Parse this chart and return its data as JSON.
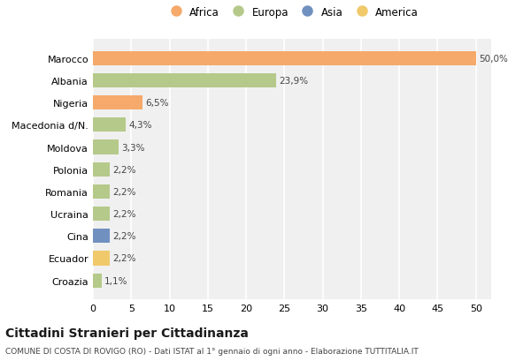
{
  "categories": [
    "Marocco",
    "Albania",
    "Nigeria",
    "Macedonia d/N.",
    "Moldova",
    "Polonia",
    "Romania",
    "Ucraina",
    "Cina",
    "Ecuador",
    "Croazia"
  ],
  "values": [
    50.0,
    23.9,
    6.5,
    4.3,
    3.3,
    2.2,
    2.2,
    2.2,
    2.2,
    2.2,
    1.1
  ],
  "labels": [
    "50,0%",
    "23,9%",
    "6,5%",
    "4,3%",
    "3,3%",
    "2,2%",
    "2,2%",
    "2,2%",
    "2,2%",
    "2,2%",
    "1,1%"
  ],
  "bar_colors": [
    "#F5A96A",
    "#B5C98A",
    "#F5A96A",
    "#B5C98A",
    "#B5C98A",
    "#B5C98A",
    "#B5C98A",
    "#B5C98A",
    "#7090C0",
    "#F0C96B",
    "#B5C98A"
  ],
  "continent_colors": {
    "Africa": "#F5A96A",
    "Europa": "#B5C98A",
    "Asia": "#7090C0",
    "America": "#F0C96B"
  },
  "legend_labels": [
    "Africa",
    "Europa",
    "Asia",
    "America"
  ],
  "title": "Cittadini Stranieri per Cittadinanza",
  "subtitle": "COMUNE DI COSTA DI ROVIGO (RO) - Dati ISTAT al 1° gennaio di ogni anno - Elaborazione TUTTITALIA.IT",
  "xlim": [
    0,
    52
  ],
  "xticks": [
    0,
    5,
    10,
    15,
    20,
    25,
    30,
    35,
    40,
    45,
    50
  ],
  "bg_color": "#ffffff",
  "plot_bg_color": "#f0f0f0"
}
